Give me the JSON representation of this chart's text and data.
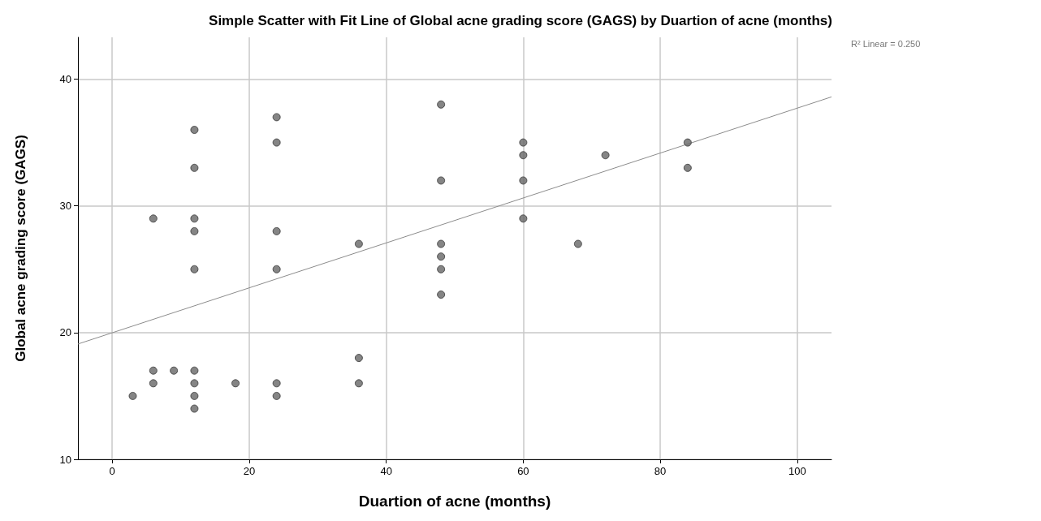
{
  "chart_data": {
    "type": "scatter",
    "title": "Simple Scatter with Fit Line of Global acne grading score (GAGS) by Duartion of acne (months)",
    "xlabel": "Duartion of acne (months)",
    "ylabel": "Global acne grading score (GAGS)",
    "annotations": [
      "R² Linear = 0.250"
    ],
    "xlim": [
      -5,
      105
    ],
    "xticks": [
      0,
      20,
      40,
      60,
      80,
      100
    ],
    "ylim": [
      10,
      43.3
    ],
    "yticks": [
      10,
      20,
      30,
      40
    ],
    "grid": true,
    "series": [
      {
        "color": "#666666",
        "marker": "circle",
        "x": [
          3,
          6,
          6,
          6,
          9,
          12,
          12,
          12,
          12,
          12,
          12,
          12,
          12,
          12,
          18,
          24,
          24,
          24,
          24,
          24,
          24,
          36,
          36,
          36,
          48,
          48,
          48,
          48,
          48,
          48,
          60,
          60,
          60,
          60,
          68,
          72,
          84,
          84
        ],
        "values": [
          15,
          29,
          17,
          16,
          17,
          36,
          33,
          29,
          28,
          25,
          17,
          16,
          15,
          14,
          16,
          37,
          35,
          28,
          25,
          16,
          15,
          27,
          18,
          16,
          38,
          32,
          27,
          26,
          25,
          23,
          35,
          34,
          32,
          29,
          27,
          34,
          35,
          33
        ]
      },
      {
        "type": "line",
        "color": "#8c8c8c",
        "marker": "none",
        "line_style": "solid",
        "x": [
          -5,
          105
        ],
        "values": [
          19.1,
          38.6
        ]
      }
    ]
  }
}
